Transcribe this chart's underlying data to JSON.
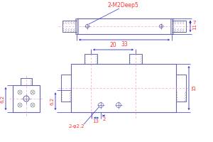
{
  "bg_color": "#ffffff",
  "line_color": "#6666aa",
  "dim_color": "#3333cc",
  "text_color": "#ff3333",
  "component_color": "#888899",
  "centerline_color": "#ff99cc",
  "annotations": {
    "m2deep5": "2-M2Deep5",
    "dim_33": "33",
    "dim_7": "7",
    "dim_11": "11",
    "dim_20": "20",
    "dim_6_2_left": "6.2",
    "dim_6_2_mid": "6.2",
    "dim_15": "15",
    "dim_13": "13",
    "dim_2": "2",
    "dim_phi": "2-φ2.2"
  }
}
